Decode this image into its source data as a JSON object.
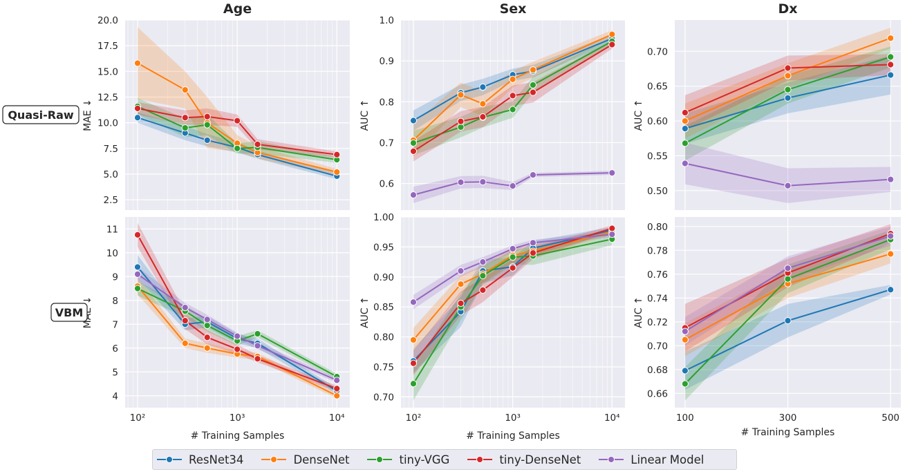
{
  "colors": {
    "ResNet34": "#1f77b4",
    "DenseNet": "#ff7f0e",
    "tiny-VGG": "#2ca02c",
    "tiny-DenseNet": "#d62728",
    "Linear Model": "#9467bd",
    "panel_bg": "#eaeaf2",
    "grid": "#ffffff"
  },
  "row_labels": [
    "Quasi-Raw",
    "VBM"
  ],
  "col_titles": [
    "Age",
    "Sex",
    "Dx"
  ],
  "xlabel": "# Training Samples",
  "legend": [
    "ResNet34",
    "DenseNet",
    "tiny-VGG",
    "tiny-DenseNet",
    "Linear Model"
  ],
  "chart_data": [
    {
      "type": "line",
      "panel": "Quasi-Raw / Age",
      "title": "Age",
      "ylabel": "MAE ↓",
      "xscale": "log",
      "xlim": [
        75,
        13500
      ],
      "ylim": [
        1.5,
        20.0
      ],
      "xticks": [
        100,
        1000,
        10000
      ],
      "xtick_labels": [
        "",
        "",
        ""
      ],
      "yticks": [
        2.5,
        5.0,
        7.5,
        10.0,
        12.5,
        15.0,
        17.5,
        20.0
      ],
      "ytick_labels": [
        "2.5",
        "5.0",
        "7.5",
        "10.0",
        "12.5",
        "15.0",
        "17.5",
        "20.0"
      ],
      "x": [
        100,
        300,
        500,
        1000,
        1600,
        10000
      ],
      "series": [
        {
          "name": "ResNet34",
          "values": [
            10.5,
            9.0,
            8.3,
            7.6,
            6.9,
            4.8
          ],
          "band": [
            0.5,
            0.7,
            0.6,
            0.5,
            0.4,
            0.3
          ]
        },
        {
          "name": "DenseNet",
          "values": [
            15.8,
            13.2,
            10.0,
            8.0,
            7.1,
            5.2
          ],
          "band": [
            3.5,
            1.8,
            2.5,
            0.8,
            0.6,
            0.3
          ]
        },
        {
          "name": "tiny-VGG",
          "values": [
            11.6,
            9.5,
            9.8,
            7.5,
            7.6,
            6.4
          ],
          "band": [
            0.8,
            0.9,
            1.0,
            0.5,
            0.6,
            0.3
          ]
        },
        {
          "name": "tiny-DenseNet",
          "values": [
            11.4,
            10.5,
            10.6,
            10.2,
            7.9,
            6.9
          ],
          "band": [
            0.6,
            0.7,
            0.8,
            0.6,
            0.5,
            0.3
          ]
        }
      ]
    },
    {
      "type": "line",
      "panel": "Quasi-Raw / Sex",
      "title": "Sex",
      "ylabel": "AUC ↑",
      "xscale": "log",
      "xlim": [
        75,
        13500
      ],
      "ylim": [
        0.535,
        1.0
      ],
      "xticks": [
        100,
        1000,
        10000
      ],
      "xtick_labels": [
        "",
        "",
        ""
      ],
      "yticks": [
        0.6,
        0.7,
        0.8,
        0.9,
        1.0
      ],
      "ytick_labels": [
        "0.6",
        "0.7",
        "0.8",
        "0.9",
        "1.0"
      ],
      "x": [
        100,
        300,
        500,
        1000,
        1600,
        10000
      ],
      "series": [
        {
          "name": "ResNet34",
          "values": [
            0.754,
            0.822,
            0.836,
            0.866,
            0.875,
            0.955
          ],
          "band": [
            0.025,
            0.02,
            0.02,
            0.015,
            0.015,
            0.01
          ]
        },
        {
          "name": "DenseNet",
          "values": [
            0.706,
            0.817,
            0.795,
            0.855,
            0.878,
            0.965
          ],
          "band": [
            0.04,
            0.03,
            0.03,
            0.02,
            0.02,
            0.01
          ]
        },
        {
          "name": "tiny-VGG",
          "values": [
            0.699,
            0.738,
            0.762,
            0.781,
            0.841,
            0.948
          ],
          "band": [
            0.03,
            0.025,
            0.025,
            0.02,
            0.02,
            0.01
          ]
        },
        {
          "name": "tiny-DenseNet",
          "values": [
            0.679,
            0.752,
            0.763,
            0.815,
            0.823,
            0.94
          ],
          "band": [
            0.025,
            0.025,
            0.025,
            0.025,
            0.025,
            0.01
          ]
        },
        {
          "name": "Linear Model",
          "values": [
            0.572,
            0.603,
            0.604,
            0.594,
            0.621,
            0.626
          ],
          "band": [
            0.02,
            0.015,
            0.015,
            0.01,
            0.005,
            0.005
          ]
        }
      ]
    },
    {
      "type": "line",
      "panel": "Quasi-Raw / Dx",
      "title": "Dx",
      "ylabel": "AUC ↑",
      "xscale": "linear",
      "xlim": [
        80,
        520
      ],
      "ylim": [
        0.472,
        0.745
      ],
      "xticks": [
        100,
        300,
        500
      ],
      "xtick_labels": [
        "",
        "",
        ""
      ],
      "yticks": [
        0.5,
        0.55,
        0.6,
        0.65,
        0.7
      ],
      "ytick_labels": [
        "0.50",
        "0.55",
        "0.60",
        "0.65",
        "0.70"
      ],
      "x": [
        100,
        300,
        500
      ],
      "series": [
        {
          "name": "ResNet34",
          "values": [
            0.589,
            0.633,
            0.666
          ],
          "band": [
            0.022,
            0.022,
            0.028
          ]
        },
        {
          "name": "DenseNet",
          "values": [
            0.6,
            0.665,
            0.719
          ],
          "band": [
            0.025,
            0.018,
            0.015
          ]
        },
        {
          "name": "tiny-VGG",
          "values": [
            0.568,
            0.645,
            0.692
          ],
          "band": [
            0.025,
            0.02,
            0.015
          ]
        },
        {
          "name": "tiny-DenseNet",
          "values": [
            0.612,
            0.676,
            0.681
          ],
          "band": [
            0.025,
            0.018,
            0.015
          ]
        },
        {
          "name": "Linear Model",
          "values": [
            0.539,
            0.507,
            0.516
          ],
          "band": [
            0.03,
            0.025,
            0.018
          ]
        }
      ]
    },
    {
      "type": "line",
      "panel": "VBM / Age",
      "ylabel": "MAE ↓",
      "xscale": "log",
      "xlim": [
        75,
        13500
      ],
      "ylim": [
        3.5,
        11.5
      ],
      "xticks": [
        100,
        1000,
        10000
      ],
      "xtick_labels": [
        "10²",
        "10³",
        "10⁴"
      ],
      "yticks": [
        4,
        5,
        6,
        7,
        8,
        9,
        10,
        11
      ],
      "ytick_labels": [
        "4",
        "5",
        "6",
        "7",
        "8",
        "9",
        "10",
        "11"
      ],
      "x": [
        100,
        300,
        500,
        1000,
        1600,
        10000
      ],
      "series": [
        {
          "name": "ResNet34",
          "values": [
            9.4,
            7.0,
            7.1,
            6.4,
            6.2,
            4.2
          ],
          "band": [
            0.5,
            0.25,
            0.25,
            0.2,
            0.2,
            0.12
          ]
        },
        {
          "name": "DenseNet",
          "values": [
            8.6,
            6.2,
            6.0,
            5.75,
            5.65,
            4.0
          ],
          "band": [
            0.35,
            0.2,
            0.2,
            0.15,
            0.15,
            0.12
          ]
        },
        {
          "name": "tiny-VGG",
          "values": [
            8.5,
            7.55,
            6.95,
            6.3,
            6.6,
            4.8
          ],
          "band": [
            0.3,
            0.25,
            0.25,
            0.2,
            0.15,
            0.12
          ]
        },
        {
          "name": "tiny-DenseNet",
          "values": [
            10.75,
            7.15,
            6.45,
            5.95,
            5.55,
            4.3
          ],
          "band": [
            0.5,
            0.35,
            0.3,
            0.2,
            0.15,
            0.12
          ]
        },
        {
          "name": "Linear Model",
          "values": [
            9.1,
            7.7,
            7.2,
            6.5,
            6.1,
            4.65
          ],
          "band": [
            0.3,
            0.2,
            0.2,
            0.15,
            0.15,
            0.1
          ]
        }
      ]
    },
    {
      "type": "line",
      "panel": "VBM / Sex",
      "ylabel": "AUC ↑",
      "xscale": "log",
      "xlim": [
        75,
        13500
      ],
      "ylim": [
        0.682,
        1.0
      ],
      "xticks": [
        100,
        1000,
        10000
      ],
      "xtick_labels": [
        "10²",
        "10³",
        "10⁴"
      ],
      "yticks": [
        0.7,
        0.75,
        0.8,
        0.85,
        0.9,
        0.95,
        1.0
      ],
      "ytick_labels": [
        "0.70",
        "0.75",
        "0.80",
        "0.85",
        "0.90",
        "0.95",
        "1.00"
      ],
      "x": [
        100,
        300,
        500,
        1000,
        1600,
        10000
      ],
      "series": [
        {
          "name": "ResNet34",
          "values": [
            0.76,
            0.842,
            0.91,
            0.917,
            0.948,
            0.978
          ],
          "band": [
            0.02,
            0.025,
            0.02,
            0.015,
            0.012,
            0.005
          ]
        },
        {
          "name": "DenseNet",
          "values": [
            0.795,
            0.888,
            0.905,
            0.936,
            0.943,
            0.975
          ],
          "band": [
            0.02,
            0.015,
            0.015,
            0.012,
            0.01,
            0.005
          ]
        },
        {
          "name": "tiny-VGG",
          "values": [
            0.722,
            0.85,
            0.902,
            0.933,
            0.935,
            0.963
          ],
          "band": [
            0.028,
            0.022,
            0.015,
            0.012,
            0.015,
            0.01
          ]
        },
        {
          "name": "tiny-DenseNet",
          "values": [
            0.756,
            0.856,
            0.878,
            0.915,
            0.94,
            0.981
          ],
          "band": [
            0.02,
            0.02,
            0.02,
            0.015,
            0.01,
            0.005
          ]
        },
        {
          "name": "Linear Model",
          "values": [
            0.858,
            0.91,
            0.925,
            0.947,
            0.957,
            0.971
          ],
          "band": [
            0.012,
            0.01,
            0.008,
            0.006,
            0.005,
            0.005
          ]
        }
      ]
    },
    {
      "type": "line",
      "panel": "VBM / Dx",
      "ylabel": "AUC ↑",
      "xscale": "linear",
      "xlim": [
        80,
        520
      ],
      "ylim": [
        0.648,
        0.808
      ],
      "xticks": [
        100,
        300,
        500
      ],
      "xtick_labels": [
        "100",
        "300",
        "500"
      ],
      "yticks": [
        0.66,
        0.68,
        0.7,
        0.72,
        0.74,
        0.76,
        0.78,
        0.8
      ],
      "ytick_labels": [
        "0.66",
        "0.68",
        "0.70",
        "0.72",
        "0.74",
        "0.76",
        "0.78",
        "0.80"
      ],
      "x": [
        100,
        300,
        500
      ],
      "series": [
        {
          "name": "ResNet34",
          "values": [
            0.679,
            0.721,
            0.747
          ],
          "band": [
            0.016,
            0.014,
            0.004
          ]
        },
        {
          "name": "DenseNet",
          "values": [
            0.705,
            0.752,
            0.777
          ],
          "band": [
            0.014,
            0.012,
            0.008
          ]
        },
        {
          "name": "tiny-VGG",
          "values": [
            0.668,
            0.756,
            0.789
          ],
          "band": [
            0.014,
            0.012,
            0.008
          ]
        },
        {
          "name": "tiny-DenseNet",
          "values": [
            0.715,
            0.761,
            0.794
          ],
          "band": [
            0.02,
            0.012,
            0.008
          ]
        },
        {
          "name": "Linear Model",
          "values": [
            0.712,
            0.765,
            0.792
          ],
          "band": [
            0.012,
            0.01,
            0.008
          ]
        }
      ]
    }
  ]
}
